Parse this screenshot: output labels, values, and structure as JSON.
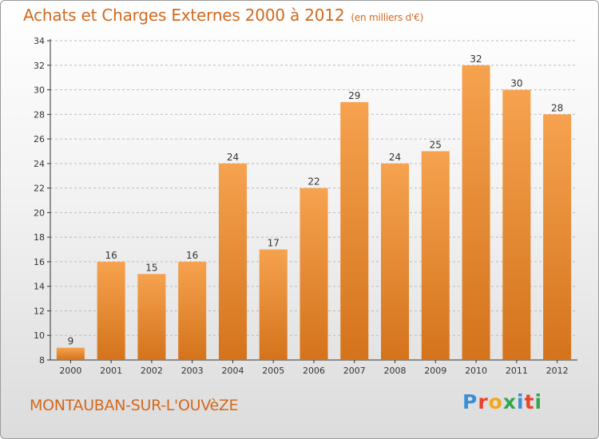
{
  "header": {
    "title": "Achats et Charges Externes 2000 à 2012",
    "subtitle": "(en milliers d'€)"
  },
  "footer": {
    "city": "MONTAUBAN-SUR-L'OUVèZE",
    "logo": "Proxiti"
  },
  "colors": {
    "bar_top": "#f6a24f",
    "bar_bottom": "#d4731c",
    "title": "#d2691e",
    "axis": "#333333",
    "grid": "#bbbbbb"
  },
  "chart_data": {
    "type": "bar",
    "title": "Achats et Charges Externes 2000 à 2012",
    "categories": [
      "2000",
      "2001",
      "2002",
      "2003",
      "2004",
      "2005",
      "2006",
      "2007",
      "2008",
      "2009",
      "2010",
      "2011",
      "2012"
    ],
    "values": [
      9,
      16,
      15,
      16,
      24,
      17,
      22,
      29,
      24,
      25,
      32,
      30,
      28
    ],
    "ylim": [
      8,
      34
    ],
    "yticks": [
      8,
      10,
      12,
      14,
      16,
      18,
      20,
      22,
      24,
      26,
      28,
      30,
      32,
      34
    ],
    "grid": "horizontal-dashed",
    "legend": "none"
  }
}
